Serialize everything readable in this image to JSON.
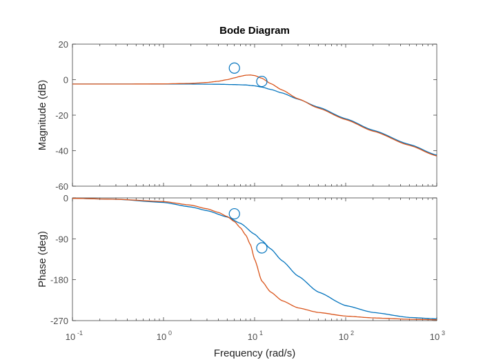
{
  "chart_data": {
    "type": "line",
    "title": "Bode Diagram",
    "xlabel": "Frequency  (rad/s)",
    "xscale": "log",
    "xlim": [
      0.1,
      1000
    ],
    "x_ticks": [
      {
        "value": 0.1,
        "base": "10",
        "exp": "-1"
      },
      {
        "value": 1,
        "base": "10",
        "exp": "0"
      },
      {
        "value": 10,
        "base": "10",
        "exp": "1"
      },
      {
        "value": 100,
        "base": "10",
        "exp": "2"
      },
      {
        "value": 1000,
        "base": "10",
        "exp": "3"
      }
    ],
    "colors": {
      "series1": "#0072BD",
      "series2": "#D95319",
      "axes": "#262626",
      "ticks": "#4d4d4d"
    },
    "panels": [
      {
        "ylabel": "Magnitude (dB)",
        "ylim": [
          -60,
          20
        ],
        "yticks": [
          20,
          0,
          -20,
          -40,
          -60
        ],
        "series": [
          {
            "color": "#0072BD",
            "x": [
              0.1,
              0.3,
              1,
              2,
              4,
              6,
              8,
              10,
              12,
              15,
              20,
              30,
              50,
              100,
              200,
              500,
              1000
            ],
            "y": [
              -2.5,
              -2.5,
              -2.5,
              -2.5,
              -2.6,
              -2.8,
              -3.0,
              -3.5,
              -4.2,
              -5.5,
              -7.5,
              -11.0,
              -15.5,
              -22.0,
              -28.5,
              -36.5,
              -42.5
            ]
          },
          {
            "color": "#D95319",
            "x": [
              0.1,
              0.3,
              1,
              2,
              3,
              4,
              5,
              6,
              7,
              8,
              9,
              10,
              12,
              15,
              20,
              30,
              50,
              100,
              200,
              500,
              1000
            ],
            "y": [
              -2.5,
              -2.5,
              -2.4,
              -2.1,
              -1.6,
              -0.9,
              0.0,
              1.0,
              1.9,
              2.5,
              2.6,
              2.3,
              0.8,
              -2.2,
              -5.8,
              -10.8,
              -16.0,
              -22.5,
              -29.0,
              -37.0,
              -43.0
            ]
          }
        ],
        "markers": [
          {
            "x": 6,
            "y": 6.5,
            "series": 0
          },
          {
            "x": 12,
            "y": -1.0,
            "series": 0
          }
        ]
      },
      {
        "ylabel": "Phase (deg)",
        "ylim": [
          -270,
          0
        ],
        "yticks": [
          0,
          -90,
          -180,
          -270
        ],
        "series": [
          {
            "color": "#0072BD",
            "x": [
              0.1,
              0.3,
              1,
              2,
              3,
              5,
              7,
              10,
              12,
              15,
              20,
              30,
              50,
              100,
              200,
              500,
              1000
            ],
            "y": [
              -1,
              -3,
              -10,
              -20,
              -28,
              -42,
              -56,
              -80,
              -94,
              -112,
              -138,
              -172,
              -207,
              -237,
              -252,
              -263,
              -266
            ]
          },
          {
            "color": "#D95319",
            "x": [
              0.1,
              0.3,
              1,
              2,
              3,
              4,
              5,
              6,
              7,
              8,
              9,
              10,
              12,
              15,
              20,
              30,
              50,
              100,
              200,
              500,
              1000
            ],
            "y": [
              -1,
              -3,
              -8,
              -16,
              -24,
              -32,
              -41,
              -52,
              -66,
              -82,
              -103,
              -135,
              -183,
              -207,
              -226,
              -242,
              -252,
              -260,
              -264,
              -267,
              -268
            ]
          }
        ],
        "markers": [
          {
            "x": 6,
            "y": -35,
            "series": 0
          },
          {
            "x": 12,
            "y": -110,
            "series": 0
          }
        ]
      }
    ]
  }
}
